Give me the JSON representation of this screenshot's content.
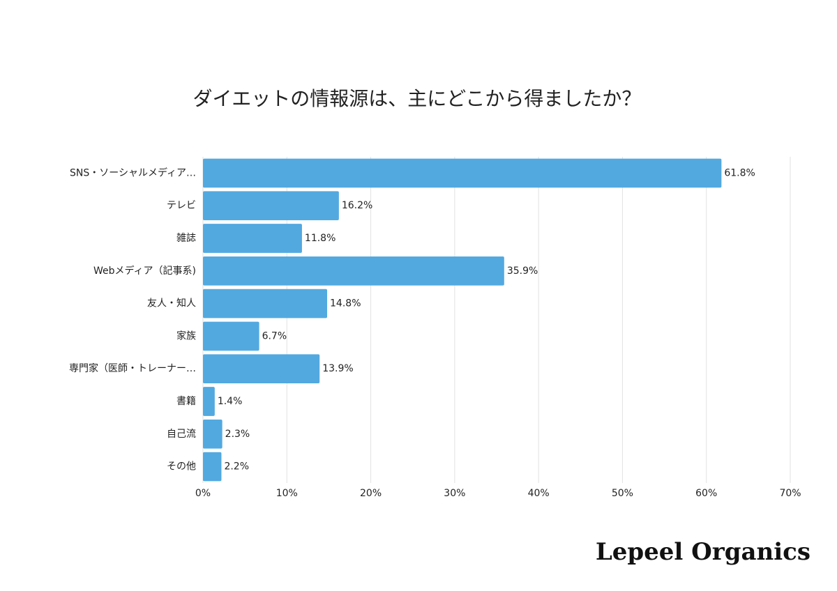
{
  "chart_data": {
    "type": "bar",
    "orientation": "horizontal",
    "title": "ダイエットの情報源は、主にどこから得ましたか？",
    "categories": [
      "SNS・ソーシャルメディア…",
      "テレビ",
      "雑誌",
      "Webメディア（記事系)",
      "友人・知人",
      "家族",
      "専門家（医師・トレーナー…",
      "書籍",
      "自己流",
      "その他"
    ],
    "values": [
      61.8,
      16.2,
      11.8,
      35.9,
      14.8,
      6.7,
      13.9,
      1.4,
      2.3,
      2.2
    ],
    "value_labels": [
      "61.8%",
      "16.2%",
      "11.8%",
      "35.9%",
      "14.8%",
      "6.7%",
      "13.9%",
      "1.4%",
      "2.3%",
      "2.2%"
    ],
    "color": "#52a9e0",
    "xlim": [
      0,
      70
    ],
    "xticks": [
      {
        "value": 0,
        "label": "0%"
      },
      {
        "value": 10,
        "label": "10%"
      },
      {
        "value": 20,
        "label": "20%"
      },
      {
        "value": 30,
        "label": "30%"
      },
      {
        "value": 40,
        "label": "40%"
      },
      {
        "value": 50,
        "label": "50%"
      },
      {
        "value": 60,
        "label": "60%"
      },
      {
        "value": 70,
        "label": "70%"
      }
    ],
    "grid": true
  },
  "brand": "Lepeel Organics"
}
